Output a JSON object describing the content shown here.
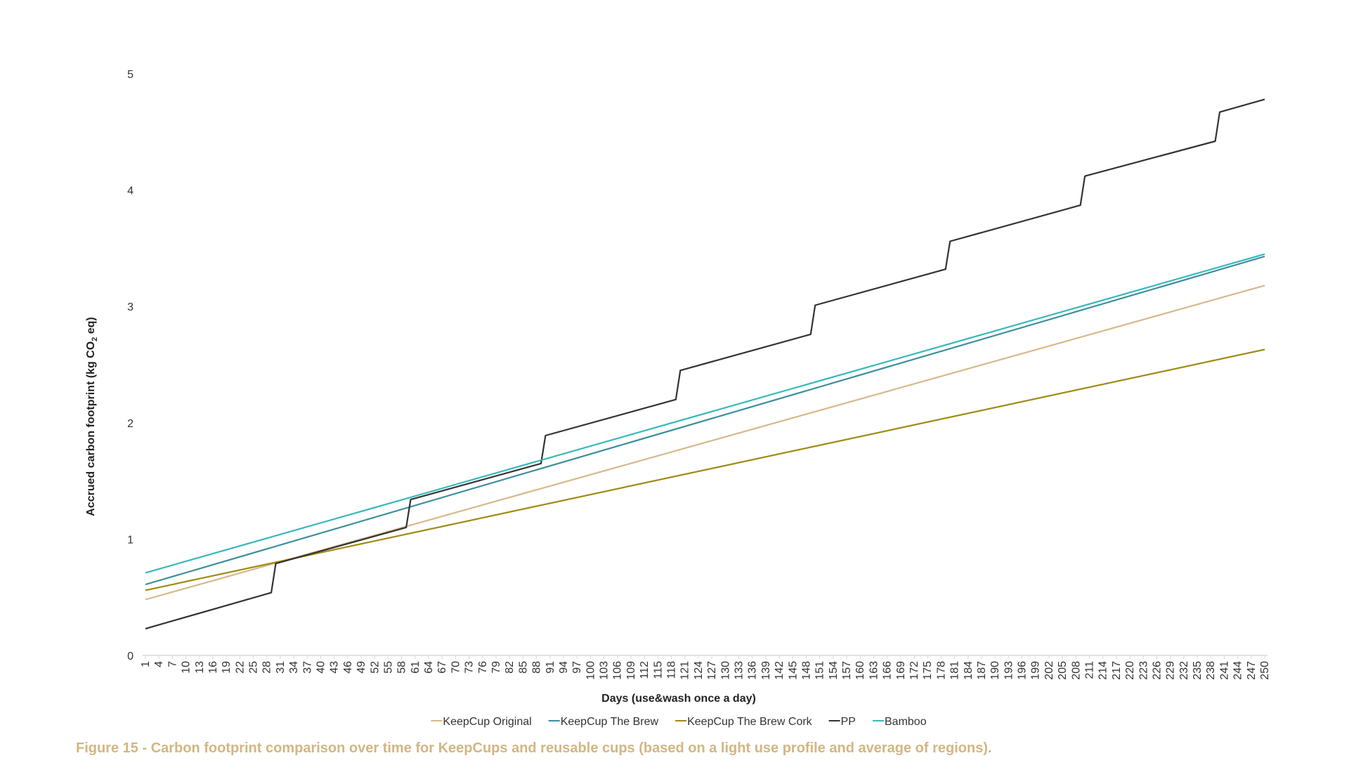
{
  "caption": "Figure 15 - Carbon footprint comparison over time for KeepCups and reusable cups (based on a light use profile and average of regions).",
  "chart_data": {
    "type": "line",
    "xlabel": "Days (use&wash once a day)",
    "ylabel": "Accrued carbon footprint (kg CO2 eq)",
    "ylabel_parts": [
      "Accrued carbon footprint (kg CO",
      "2",
      " eq)"
    ],
    "xlim": [
      1,
      250
    ],
    "ylim": [
      0,
      5
    ],
    "x_ticks": [
      1,
      4,
      7,
      10,
      13,
      16,
      19,
      22,
      25,
      28,
      31,
      34,
      37,
      40,
      43,
      46,
      49,
      52,
      55,
      58,
      61,
      64,
      67,
      70,
      73,
      76,
      79,
      82,
      85,
      88,
      91,
      94,
      97,
      100,
      103,
      106,
      109,
      112,
      115,
      118,
      121,
      124,
      127,
      130,
      133,
      136,
      139,
      142,
      145,
      148,
      151,
      154,
      157,
      160,
      163,
      166,
      169,
      172,
      175,
      178,
      181,
      184,
      187,
      190,
      193,
      196,
      199,
      202,
      205,
      208,
      211,
      214,
      217,
      220,
      223,
      226,
      229,
      232,
      235,
      238,
      241,
      244,
      247,
      250
    ],
    "y_ticks": [
      0,
      1,
      2,
      3,
      4,
      5
    ],
    "grid": false,
    "legend": "bottom",
    "series": [
      {
        "name": "KeepCup Original",
        "color": "#d6b98a",
        "x": [
          1,
          250
        ],
        "y": [
          0.48,
          3.18
        ]
      },
      {
        "name": "KeepCup The Brew",
        "color": "#3c8f9a",
        "x": [
          1,
          250
        ],
        "y": [
          0.61,
          3.43
        ]
      },
      {
        "name": "KeepCup The Brew Cork",
        "color": "#a08a12",
        "x": [
          1,
          250
        ],
        "y": [
          0.56,
          2.63
        ]
      },
      {
        "name": "PP",
        "color": "#333333",
        "x": [
          1,
          29,
          30,
          59,
          60,
          89,
          90,
          119,
          120,
          149,
          150,
          179,
          180,
          209,
          210,
          239,
          240,
          250
        ],
        "y": [
          0.23,
          0.54,
          0.79,
          1.1,
          1.34,
          1.65,
          1.89,
          2.2,
          2.45,
          2.76,
          3.01,
          3.32,
          3.56,
          3.87,
          4.12,
          4.42,
          4.67,
          4.78
        ]
      },
      {
        "name": "Bamboo",
        "color": "#37b8bc",
        "x": [
          1,
          250
        ],
        "y": [
          0.71,
          3.45
        ]
      }
    ]
  }
}
